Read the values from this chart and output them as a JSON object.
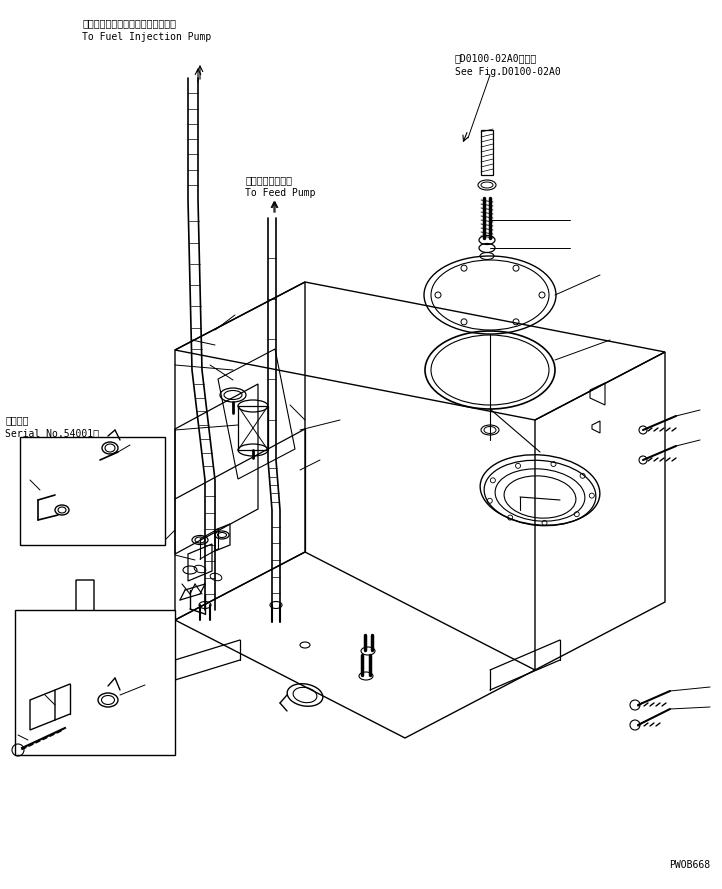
{
  "bg_color": "#ffffff",
  "line_color": "#000000",
  "text_color": "#000000",
  "fig_width": 7.22,
  "fig_height": 8.89,
  "dpi": 100,
  "top_left_label_jp": "フェエルインジェクションポンプへ",
  "top_left_label_en": "To Fuel Injection Pump",
  "top_mid_label_jp": "フィードポンプへ",
  "top_mid_label_en": "To Feed Pump",
  "top_right_label1": "第D0100-02A0図参照",
  "top_right_label2": "See Fig.D0100-02A0",
  "serial_label1": "適用号機",
  "serial_label2": "Serial No.54001～",
  "bottom_right_code": "PWOB668",
  "font_size_jp": 7.0,
  "font_size_en": 7.0,
  "font_family": "monospace"
}
